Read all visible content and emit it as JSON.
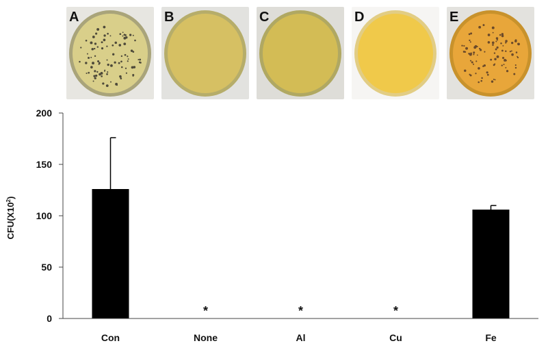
{
  "plates": [
    {
      "letter": "A",
      "colonies": true,
      "rim": "#a9a47a",
      "fill": "#d9cf8a",
      "bg": "#e7e6e1"
    },
    {
      "letter": "B",
      "colonies": false,
      "rim": "#b6ad6a",
      "fill": "#d6c063",
      "bg": "#e2e2df"
    },
    {
      "letter": "C",
      "colonies": false,
      "rim": "#b0a862",
      "fill": "#d3bc55",
      "bg": "#deddd8"
    },
    {
      "letter": "D",
      "colonies": false,
      "rim": "#e2cd84",
      "fill": "#f0c94a",
      "bg": "#f6f5f3"
    },
    {
      "letter": "E",
      "colonies": true,
      "rim": "#c8922c",
      "fill": "#e8a63a",
      "bg": "#e3e2de"
    }
  ],
  "chart_data": {
    "type": "bar",
    "categories": [
      "Con",
      "None",
      "Al",
      "Cu",
      "Fe"
    ],
    "values": [
      126,
      0,
      0,
      0,
      106
    ],
    "error_up": [
      50,
      0,
      0,
      0,
      4
    ],
    "significance": [
      "",
      "*",
      "*",
      "*",
      ""
    ],
    "ylabel_main": "CFU(X10",
    "ylabel_exp": "2",
    "ylabel_close": ")",
    "ylim": [
      0,
      200
    ],
    "yticks": [
      0,
      50,
      100,
      150,
      200
    ],
    "bar_color": "#000000"
  }
}
